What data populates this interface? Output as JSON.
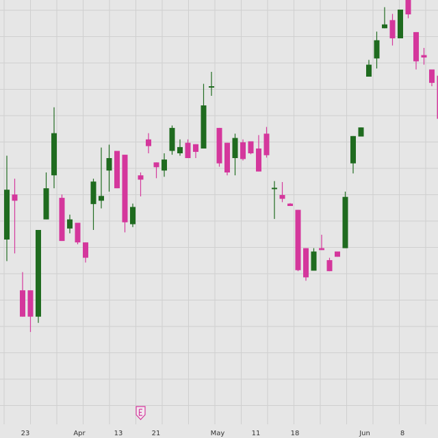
{
  "chart_data": {
    "type": "candlestick",
    "colors": {
      "up": "#1f6b1f",
      "down": "#d4379c",
      "grid": "#cfcfcf",
      "background": "#e6e6e6"
    },
    "x_tick_labels": [
      "23",
      "Apr",
      "13",
      "21",
      "May",
      "11",
      "18",
      "Jun",
      "8"
    ],
    "marker_icon": "earnings-e-icon",
    "candles": [
      {
        "open": 0.0,
        "close": 1.04,
        "high": 1.75,
        "low": -0.45
      },
      {
        "open": 0.94,
        "close": 0.81,
        "high": 1.27,
        "low": -0.29
      },
      {
        "open": -1.06,
        "close": -1.61,
        "high": -0.68,
        "low": -1.61
      },
      {
        "open": -1.06,
        "close": -1.61,
        "high": -1.06,
        "low": -1.93
      },
      {
        "open": -1.61,
        "close": 0.2,
        "high": 0.2,
        "low": -1.74
      },
      {
        "open": 0.42,
        "close": 1.07,
        "high": 1.4,
        "low": 0.42
      },
      {
        "open": 1.34,
        "close": 2.22,
        "high": 2.76,
        "low": 1.07
      },
      {
        "open": 0.87,
        "close": -0.03,
        "high": 0.94,
        "low": -0.03
      },
      {
        "open": 0.23,
        "close": 0.42,
        "high": 0.52,
        "low": 0.13
      },
      {
        "open": 0.35,
        "close": -0.06,
        "high": 0.35,
        "low": -0.1
      },
      {
        "open": -0.06,
        "close": -0.38,
        "high": -0.06,
        "low": -0.48
      },
      {
        "open": 0.74,
        "close": 1.21,
        "high": 1.27,
        "low": 0.2
      },
      {
        "open": 0.81,
        "close": 0.91,
        "high": 1.92,
        "low": 0.65
      },
      {
        "open": 1.44,
        "close": 1.7,
        "high": 1.98,
        "low": 1.0
      },
      {
        "open": 1.85,
        "close": 1.07,
        "high": 1.85,
        "low": 1.07
      },
      {
        "open": 1.77,
        "close": 0.36,
        "high": 1.77,
        "low": 0.15
      },
      {
        "open": 0.32,
        "close": 0.68,
        "high": 0.75,
        "low": 0.26
      },
      {
        "open": 1.34,
        "close": 1.25,
        "high": 1.4,
        "low": 0.9
      },
      {
        "open": 2.09,
        "close": 1.95,
        "high": 2.22,
        "low": 1.8
      },
      {
        "open": 1.61,
        "close": 1.51,
        "high": 1.61,
        "low": 1.28
      },
      {
        "open": 1.44,
        "close": 1.67,
        "high": 1.8,
        "low": 1.31
      },
      {
        "open": 1.85,
        "close": 2.33,
        "high": 2.38,
        "low": 1.77
      },
      {
        "open": 1.8,
        "close": 1.93,
        "high": 2.09,
        "low": 1.75
      },
      {
        "open": 2.02,
        "close": 1.7,
        "high": 2.09,
        "low": 1.7
      },
      {
        "open": 1.99,
        "close": 1.83,
        "high": 1.99,
        "low": 1.7
      },
      {
        "open": 1.9,
        "close": 2.8,
        "high": 3.25,
        "low": 1.9
      },
      {
        "open": 3.2,
        "close": 3.2,
        "high": 3.5,
        "low": 3.0
      },
      {
        "open": 2.33,
        "close": 1.59,
        "high": 2.33,
        "low": 1.52
      },
      {
        "open": 2.02,
        "close": 1.4,
        "high": 2.02,
        "low": 1.34
      },
      {
        "open": 1.7,
        "close": 2.12,
        "high": 2.21,
        "low": 1.34
      },
      {
        "open": 2.03,
        "close": 1.68,
        "high": 2.09,
        "low": 1.65
      },
      {
        "open": 2.05,
        "close": 1.8,
        "high": 2.05,
        "low": 1.78
      },
      {
        "open": 1.9,
        "close": 1.42,
        "high": 2.18,
        "low": 1.42
      },
      {
        "open": 2.21,
        "close": 1.76,
        "high": 2.35,
        "low": 1.71
      },
      {
        "open": 1.08,
        "close": 1.08,
        "high": 1.22,
        "low": 0.43
      },
      {
        "open": 0.93,
        "close": 0.85,
        "high": 1.2,
        "low": 0.78
      },
      {
        "open": 0.75,
        "close": 0.7,
        "high": 0.76,
        "low": 0.7
      },
      {
        "open": 0.62,
        "close": -0.64,
        "high": 0.62,
        "low": -0.66
      },
      {
        "open": -0.18,
        "close": -0.79,
        "high": -0.18,
        "low": -0.86
      },
      {
        "open": -0.65,
        "close": -0.25,
        "high": -0.18,
        "low": -0.65
      },
      {
        "open": -0.18,
        "close": -0.22,
        "high": 0.1,
        "low": -0.22
      },
      {
        "open": -0.43,
        "close": -0.66,
        "high": -0.38,
        "low": -0.66
      },
      {
        "open": -0.25,
        "close": -0.36,
        "high": -0.25,
        "low": -0.36
      },
      {
        "open": -0.18,
        "close": 0.89,
        "high": 1.0,
        "low": -0.18
      },
      {
        "open": 1.59,
        "close": 2.16,
        "high": 2.16,
        "low": 1.38
      },
      {
        "open": 2.15,
        "close": 2.34,
        "high": 2.34,
        "low": 2.15
      },
      {
        "open": 3.4,
        "close": 3.65,
        "high": 3.75,
        "low": 3.4
      },
      {
        "open": 3.78,
        "close": 4.16,
        "high": 4.34,
        "low": 3.57
      },
      {
        "open": 4.41,
        "close": 4.49,
        "high": 4.85,
        "low": 4.41
      },
      {
        "open": 4.58,
        "close": 4.2,
        "high": 4.71,
        "low": 4.05
      },
      {
        "open": 4.2,
        "close": 4.8,
        "high": 4.8,
        "low": 4.2
      },
      {
        "open": 5.41,
        "close": 4.7,
        "high": 5.6,
        "low": 4.62
      },
      {
        "open": 4.33,
        "close": 3.72,
        "high": 4.33,
        "low": 3.55
      },
      {
        "open": 3.85,
        "close": 3.8,
        "high": 4.0,
        "low": 3.65
      },
      {
        "open": 3.55,
        "close": 3.27,
        "high": 3.55,
        "low": 3.2
      },
      {
        "open": 3.42,
        "close": 2.52,
        "high": 3.42,
        "low": 2.52
      },
      {
        "open": 3.16,
        "close": 2.8,
        "high": 3.16,
        "low": 2.8
      }
    ]
  }
}
